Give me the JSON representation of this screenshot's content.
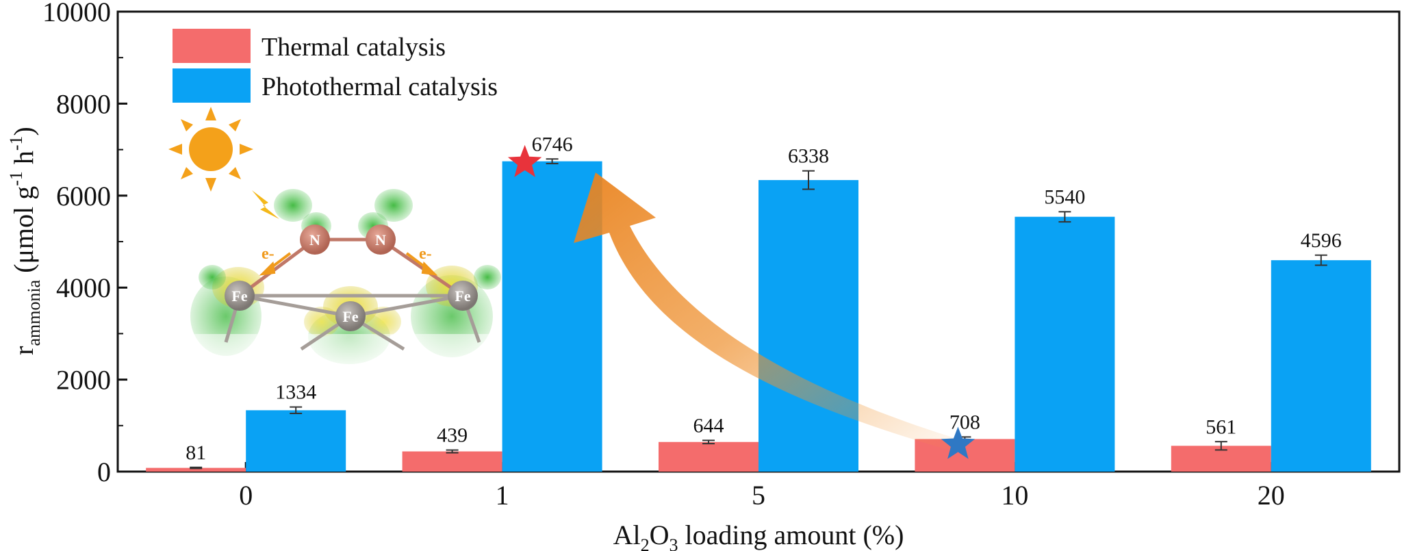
{
  "chart_data": {
    "type": "bar",
    "categories": [
      "0",
      "1",
      "5",
      "10",
      "20"
    ],
    "series": [
      {
        "name": "Thermal catalysis",
        "values": [
          81,
          439,
          644,
          708,
          561
        ],
        "errors": [
          12,
          30,
          35,
          45,
          90
        ],
        "color": "#f46c6c"
      },
      {
        "name": "Photothermal catalysis",
        "values": [
          1334,
          6746,
          6338,
          5540,
          4596
        ],
        "errors": [
          70,
          50,
          200,
          110,
          110
        ],
        "color": "#0aa2f4"
      }
    ],
    "data_labels": {
      "thermal": [
        "81",
        "439",
        "644",
        "708",
        "561"
      ],
      "photothermal": [
        "1334",
        "6746",
        "6338",
        "5540",
        "4596"
      ]
    },
    "y_ticks": [
      "0",
      "2000",
      "4000",
      "6000",
      "8000",
      "10000"
    ],
    "ylim": [
      0,
      10000
    ],
    "xlabel": {
      "pre": "Al",
      "sub1": "2",
      "mid": "O",
      "sub2": "3",
      "post": " loading amount (%)"
    },
    "ylabel": {
      "base": "r",
      "sub": "ammonia",
      "unit_a": " (μmol g",
      "sup_a": "-1",
      "unit_b": " h",
      "sup_b": "-1",
      "unit_c": ")"
    },
    "legend_position": "top-left",
    "grid": false,
    "annotations": {
      "highlight_best": {
        "series": "Photothermal catalysis",
        "category": "1",
        "marker": "star",
        "color": "#e8333b"
      },
      "highlight_ref": {
        "series": "Thermal catalysis",
        "category": "10",
        "marker": "star",
        "color": "#2f78c4"
      },
      "arrow": "curved arrow from the 10% thermal bar to the 1% photothermal bar",
      "inset": "sun and Fe–N2 cluster illustration"
    }
  },
  "inset": {
    "atoms_n": [
      "N",
      "N"
    ],
    "atoms_fe": [
      "Fe",
      "Fe",
      "Fe"
    ],
    "electron_labels": [
      "e-",
      "e-"
    ],
    "sun_color": "#f4a11a"
  }
}
